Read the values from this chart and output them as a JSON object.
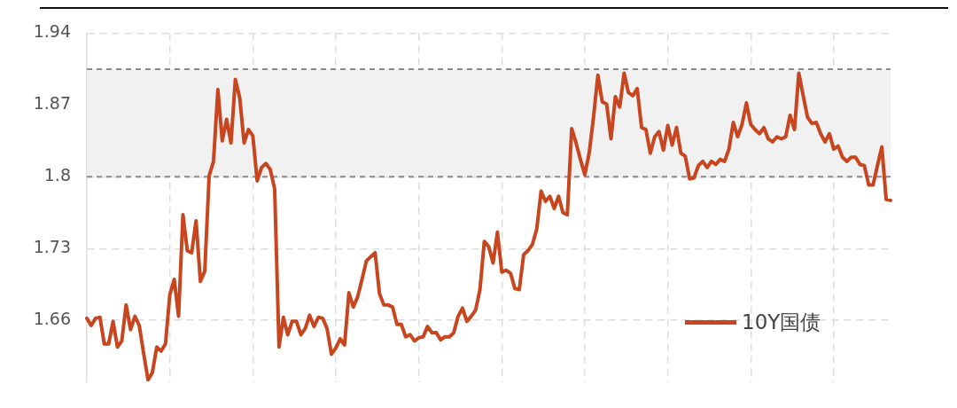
{
  "chart_data": {
    "type": "line",
    "categories": [
      null,
      null,
      null,
      null,
      null,
      null,
      null,
      null,
      null,
      null,
      null,
      null,
      null,
      null,
      null,
      null,
      null,
      null,
      null,
      null,
      null,
      null,
      null,
      null,
      null,
      null,
      null,
      null,
      null,
      null,
      null,
      null,
      null,
      null,
      null,
      null,
      null,
      null,
      null,
      null,
      null,
      null,
      null,
      null,
      null,
      null,
      null,
      null,
      null,
      null,
      null,
      null,
      null,
      null,
      null,
      null,
      null,
      null,
      null,
      null,
      null,
      null,
      null,
      null,
      null,
      null,
      null,
      null,
      null,
      null,
      null,
      null,
      null,
      null,
      null,
      null,
      null,
      null,
      null,
      null,
      null,
      null,
      null,
      null,
      null,
      null,
      null,
      null,
      null,
      null,
      null,
      null,
      null,
      null,
      null,
      null,
      null,
      null,
      null,
      null,
      null,
      null,
      null,
      null,
      null,
      null,
      null,
      null,
      null,
      null,
      null,
      null,
      null,
      null,
      null,
      null,
      null,
      null,
      null,
      null,
      null,
      null,
      null,
      null,
      null,
      null,
      null,
      null,
      null,
      null,
      null,
      null,
      null,
      null,
      null,
      null,
      null,
      null,
      null,
      null,
      null,
      null,
      null,
      null,
      null,
      null,
      null,
      null,
      null,
      null,
      null,
      null,
      null,
      null,
      null,
      null,
      null,
      null,
      null,
      null,
      null,
      null,
      null,
      null,
      null,
      null,
      null,
      null,
      null,
      null,
      null,
      null,
      null,
      null,
      null,
      null,
      null,
      null,
      null,
      null,
      null,
      null,
      null,
      null,
      null
    ],
    "series": [
      {
        "name": "10Y国债",
        "color": "#c8461f",
        "values": [
          1.662,
          1.655,
          1.662,
          1.663,
          1.637,
          1.637,
          1.659,
          1.634,
          1.64,
          1.675,
          1.651,
          1.664,
          1.655,
          1.628,
          1.602,
          1.609,
          1.634,
          1.63,
          1.637,
          1.685,
          1.7,
          1.664,
          1.763,
          1.728,
          1.726,
          1.757,
          1.698,
          1.708,
          1.801,
          1.815,
          1.885,
          1.835,
          1.856,
          1.833,
          1.895,
          1.877,
          1.833,
          1.846,
          1.84,
          1.796,
          1.809,
          1.813,
          1.807,
          1.788,
          1.634,
          1.663,
          1.646,
          1.659,
          1.659,
          1.646,
          1.652,
          1.665,
          1.654,
          1.663,
          1.662,
          1.652,
          1.627,
          1.633,
          1.642,
          1.636,
          1.687,
          1.673,
          1.683,
          1.7,
          1.718,
          1.722,
          1.726,
          1.686,
          1.675,
          1.675,
          1.673,
          1.656,
          1.656,
          1.644,
          1.646,
          1.64,
          1.643,
          1.644,
          1.654,
          1.648,
          1.648,
          1.641,
          1.644,
          1.644,
          1.648,
          1.664,
          1.672,
          1.659,
          1.664,
          1.67,
          1.69,
          1.737,
          1.732,
          1.716,
          1.746,
          1.707,
          1.709,
          1.706,
          1.691,
          1.69,
          1.724,
          1.728,
          1.734,
          1.749,
          1.786,
          1.776,
          1.781,
          1.769,
          1.781,
          1.765,
          1.763,
          1.847,
          1.833,
          1.817,
          1.802,
          1.823,
          1.858,
          1.899,
          1.873,
          1.871,
          1.837,
          1.878,
          1.868,
          1.901,
          1.882,
          1.879,
          1.886,
          1.848,
          1.846,
          1.823,
          1.839,
          1.844,
          1.826,
          1.85,
          1.831,
          1.848,
          1.823,
          1.82,
          1.798,
          1.799,
          1.811,
          1.815,
          1.809,
          1.815,
          1.812,
          1.817,
          1.815,
          1.827,
          1.853,
          1.839,
          1.851,
          1.872,
          1.851,
          1.846,
          1.842,
          1.848,
          1.837,
          1.834,
          1.839,
          1.837,
          1.839,
          1.86,
          1.846,
          1.901,
          1.879,
          1.858,
          1.852,
          1.853,
          1.842,
          1.834,
          1.842,
          1.827,
          1.83,
          1.819,
          1.815,
          1.819,
          1.819,
          1.812,
          1.811,
          1.792,
          1.792,
          1.811,
          1.829,
          1.778,
          1.777
        ]
      }
    ],
    "ylim": [
      1.6,
      1.94
    ],
    "yticks": [
      1.66,
      1.73,
      1.8,
      1.87,
      1.94
    ],
    "bands": [
      {
        "axis": "y",
        "from": 1.8,
        "to": 1.905,
        "color": "#f1f1f1"
      }
    ],
    "ref_lines": [
      {
        "axis": "y",
        "value": 1.8,
        "color": "#8a8a8a",
        "line_style": "dashed"
      },
      {
        "axis": "y",
        "value": 1.905,
        "color": "#8a8a8a",
        "line_style": "dashed"
      }
    ],
    "grid": true,
    "legend": "bottom right",
    "marker": "none",
    "line_style": "solid"
  }
}
